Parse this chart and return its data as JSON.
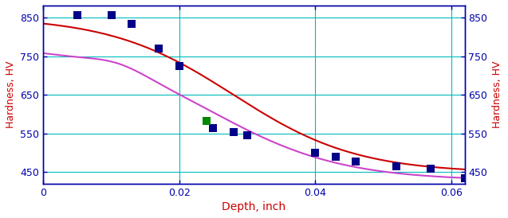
{
  "blue_points_x": [
    0.005,
    0.01,
    0.013,
    0.017,
    0.02,
    0.025,
    0.028,
    0.03,
    0.04,
    0.043,
    0.046,
    0.052,
    0.057,
    0.062
  ],
  "blue_points_y": [
    858,
    857,
    835,
    770,
    725,
    565,
    555,
    545,
    500,
    490,
    478,
    465,
    460,
    435
  ],
  "green_points_x": [
    0.024
  ],
  "green_points_y": [
    583
  ],
  "xlim": [
    0,
    0.062
  ],
  "ylim": [
    420,
    882
  ],
  "xticks": [
    0,
    0.02,
    0.04,
    0.06
  ],
  "yticks": [
    450,
    550,
    650,
    750,
    850
  ],
  "xlabel": "Depth, inch",
  "ylabel_left": "Hardness, HV",
  "ylabel_right": "Hardness, HV",
  "xlabel_color": "#cc0000",
  "ylabel_left_color": "#cc0000",
  "ylabel_right_color": "#cc0000",
  "tick_color": "#0000aa",
  "axis_color": "#0000aa",
  "grid_color": "#00bbbb",
  "bg_color": "#ffffff",
  "curve1_color": "#cc0000",
  "curve2_color": "#cc44cc",
  "blue_marker_color": "#000088",
  "green_marker_color": "#008800",
  "marker_size": 7,
  "line_width": 1.5
}
